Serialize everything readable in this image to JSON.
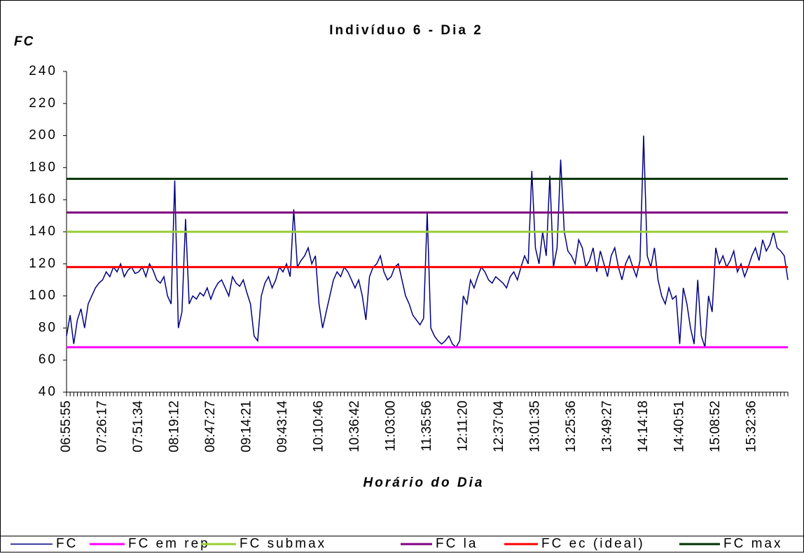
{
  "chart_data": {
    "type": "line",
    "title": "Indivíduo 6 - Dia 2",
    "y_label": "FC",
    "x_label": "Horário do Dia",
    "categories": [
      "06:55:55",
      null,
      null,
      null,
      null,
      null,
      null,
      null,
      null,
      null,
      "07:26:17",
      null,
      null,
      null,
      null,
      null,
      null,
      null,
      null,
      null,
      "07:51:34",
      null,
      null,
      null,
      null,
      null,
      null,
      null,
      null,
      null,
      "08:19:12",
      null,
      null,
      null,
      null,
      null,
      null,
      null,
      null,
      null,
      "08:47:27",
      null,
      null,
      null,
      null,
      null,
      null,
      null,
      null,
      null,
      "09:14:21",
      null,
      null,
      null,
      null,
      null,
      null,
      null,
      null,
      null,
      "09:43:14",
      null,
      null,
      null,
      null,
      null,
      null,
      null,
      null,
      null,
      "10:10:46",
      null,
      null,
      null,
      null,
      null,
      null,
      null,
      null,
      null,
      "10:36:42",
      null,
      null,
      null,
      null,
      null,
      null,
      null,
      null,
      null,
      "11:03:00",
      null,
      null,
      null,
      null,
      null,
      null,
      null,
      null,
      null,
      "11:35:56",
      null,
      null,
      null,
      null,
      null,
      null,
      null,
      null,
      null,
      "12:11:20",
      null,
      null,
      null,
      null,
      null,
      null,
      null,
      null,
      null,
      "12:37:04",
      null,
      null,
      null,
      null,
      null,
      null,
      null,
      null,
      null,
      "13:01:35",
      null,
      null,
      null,
      null,
      null,
      null,
      null,
      null,
      null,
      "13:25:36",
      null,
      null,
      null,
      null,
      null,
      null,
      null,
      null,
      null,
      "13:49:27",
      null,
      null,
      null,
      null,
      null,
      null,
      null,
      null,
      null,
      "14:14:18",
      null,
      null,
      null,
      null,
      null,
      null,
      null,
      null,
      null,
      "14:40:51",
      null,
      null,
      null,
      null,
      null,
      null,
      null,
      null,
      null,
      "15:08:52",
      null,
      null,
      null,
      null,
      null,
      null,
      null,
      null,
      null,
      "15:32:36",
      null,
      null,
      null,
      null,
      null,
      null,
      null,
      null,
      null,
      null
    ],
    "series": [
      {
        "name": "FC",
        "color": "#000080",
        "values": [
          75,
          88,
          70,
          85,
          92,
          80,
          95,
          100,
          105,
          108,
          110,
          115,
          112,
          118,
          115,
          120,
          112,
          116,
          118,
          114,
          115,
          118,
          112,
          120,
          116,
          110,
          108,
          112,
          100,
          95,
          172,
          80,
          90,
          148,
          95,
          100,
          98,
          102,
          100,
          105,
          98,
          104,
          108,
          110,
          105,
          100,
          112,
          108,
          106,
          110,
          102,
          95,
          75,
          72,
          100,
          108,
          112,
          105,
          110,
          118,
          115,
          120,
          112,
          154,
          118,
          122,
          125,
          130,
          120,
          125,
          95,
          80,
          90,
          100,
          110,
          115,
          112,
          118,
          115,
          110,
          105,
          110,
          100,
          85,
          112,
          118,
          120,
          125,
          115,
          110,
          112,
          118,
          120,
          110,
          100,
          95,
          88,
          85,
          82,
          86,
          152,
          80,
          75,
          72,
          70,
          72,
          75,
          70,
          68,
          72,
          100,
          95,
          110,
          105,
          112,
          118,
          115,
          110,
          108,
          112,
          110,
          108,
          105,
          112,
          115,
          110,
          118,
          125,
          120,
          178,
          130,
          120,
          140,
          125,
          175,
          118,
          130,
          185,
          140,
          128,
          125,
          120,
          135,
          130,
          118,
          122,
          130,
          115,
          128,
          120,
          112,
          125,
          130,
          118,
          110,
          120,
          125,
          118,
          112,
          122,
          200,
          125,
          118,
          130,
          110,
          100,
          95,
          105,
          98,
          100,
          70,
          105,
          95,
          80,
          70,
          110,
          75,
          68,
          100,
          90,
          130,
          120,
          125,
          118,
          122,
          128,
          115,
          120,
          112,
          118,
          125,
          130,
          122,
          135,
          128,
          132,
          140,
          130,
          128,
          125,
          110
        ]
      }
    ],
    "reference_lines": [
      {
        "name": "FC em rep",
        "color": "#ff00ff",
        "value": 68
      },
      {
        "name": "FC submax",
        "color": "#99cc33",
        "value": 140
      },
      {
        "name": "FC la",
        "color": "#800080",
        "value": 152
      },
      {
        "name": "FC ec (ideal)",
        "color": "#ff0000",
        "value": 118
      },
      {
        "name": "FC max",
        "color": "#003300",
        "value": 173
      }
    ],
    "ylim": [
      40,
      240
    ],
    "yticks": [
      40,
      60,
      80,
      100,
      120,
      140,
      160,
      180,
      200,
      220,
      240
    ],
    "grid": false,
    "legend": "bottom"
  }
}
